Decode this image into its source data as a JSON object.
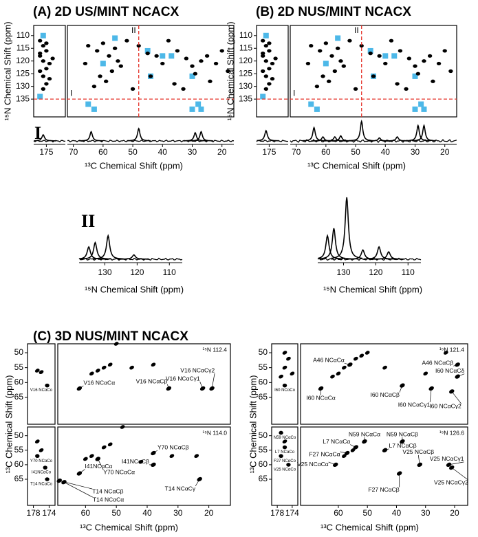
{
  "spectra_2d": {
    "slice_color": "#e5332a",
    "highlight_color": "#4db8e8",
    "axes": {
      "xlim": [
        72,
        16
      ],
      "strip_xlim": [
        179,
        169
      ],
      "ylim": [
        106,
        142
      ],
      "xticks": [
        70,
        60,
        50,
        40,
        30,
        20
      ],
      "strip_xticks": [
        175
      ],
      "yticks": [
        110,
        115,
        120,
        125,
        130,
        135
      ],
      "y_label": "¹⁵N Chemical Shift (ppm)",
      "slice_marks": [
        "I",
        "II"
      ]
    },
    "panels": [
      {
        "title": "(A) 2D US/MINT NCACX",
        "n_slice": 135,
        "c_slice": 48,
        "strip_peaks": [
          [
            177,
            112
          ],
          [
            176,
            114
          ],
          [
            175,
            116
          ],
          [
            177,
            118
          ],
          [
            176,
            120
          ],
          [
            174,
            121
          ],
          [
            175,
            123
          ],
          [
            177,
            124
          ],
          [
            176,
            126
          ],
          [
            174,
            127
          ],
          [
            175,
            129
          ],
          [
            176,
            131
          ],
          [
            177,
            117
          ],
          [
            173,
            119
          ],
          [
            175,
            113
          ]
        ],
        "peaks": [
          [
            65,
            114
          ],
          [
            62,
            116
          ],
          [
            60,
            113
          ],
          [
            58,
            118
          ],
          [
            56,
            115
          ],
          [
            55,
            120
          ],
          [
            54,
            122
          ],
          [
            57,
            124
          ],
          [
            61,
            126
          ],
          [
            59,
            128
          ],
          [
            52,
            112
          ],
          [
            48,
            114
          ],
          [
            45,
            117
          ],
          [
            42,
            118
          ],
          [
            40,
            121
          ],
          [
            38,
            112
          ],
          [
            35,
            116
          ],
          [
            32,
            119
          ],
          [
            30,
            122
          ],
          [
            29,
            125
          ],
          [
            27,
            120
          ],
          [
            25,
            118
          ],
          [
            22,
            121
          ],
          [
            20,
            116
          ],
          [
            18,
            124
          ],
          [
            44,
            126
          ],
          [
            36,
            129
          ],
          [
            33,
            131
          ],
          [
            24,
            128
          ],
          [
            50,
            131
          ],
          [
            63,
            130
          ],
          [
            66,
            121
          ]
        ],
        "strip_boxes": [
          [
            176,
            110
          ],
          [
            177,
            134
          ]
        ],
        "boxes": [
          [
            56,
            111
          ],
          [
            45,
            116
          ],
          [
            60,
            121
          ],
          [
            40,
            118
          ],
          [
            37,
            118
          ],
          [
            44,
            126
          ],
          [
            30,
            126
          ],
          [
            65,
            137
          ],
          [
            63,
            139
          ],
          [
            30,
            139
          ],
          [
            27,
            139
          ],
          [
            28,
            137
          ]
        ]
      },
      {
        "title": "(B) 2D NUS/MINT NCACX",
        "n_slice": 135,
        "c_slice": 48,
        "strip_peaks": [
          [
            177,
            112
          ],
          [
            176,
            114
          ],
          [
            175,
            116
          ],
          [
            177,
            118
          ],
          [
            176,
            120
          ],
          [
            174,
            121
          ],
          [
            175,
            123
          ],
          [
            177,
            124
          ],
          [
            176,
            126
          ],
          [
            174,
            127
          ],
          [
            175,
            129
          ],
          [
            176,
            131
          ],
          [
            177,
            117
          ],
          [
            173,
            119
          ],
          [
            175,
            113
          ]
        ],
        "peaks": [
          [
            65,
            114
          ],
          [
            62,
            116
          ],
          [
            60,
            113
          ],
          [
            58,
            118
          ],
          [
            56,
            115
          ],
          [
            55,
            120
          ],
          [
            54,
            122
          ],
          [
            57,
            124
          ],
          [
            61,
            126
          ],
          [
            59,
            128
          ],
          [
            52,
            112
          ],
          [
            48,
            114
          ],
          [
            45,
            117
          ],
          [
            42,
            118
          ],
          [
            40,
            121
          ],
          [
            38,
            112
          ],
          [
            35,
            116
          ],
          [
            32,
            119
          ],
          [
            30,
            122
          ],
          [
            29,
            125
          ],
          [
            27,
            120
          ],
          [
            25,
            118
          ],
          [
            22,
            121
          ],
          [
            20,
            116
          ],
          [
            18,
            124
          ],
          [
            44,
            126
          ],
          [
            36,
            129
          ],
          [
            33,
            131
          ],
          [
            24,
            128
          ],
          [
            50,
            131
          ],
          [
            63,
            130
          ],
          [
            66,
            121
          ]
        ],
        "strip_boxes": [
          [
            176,
            110
          ],
          [
            177,
            134
          ]
        ],
        "boxes": [
          [
            56,
            111
          ],
          [
            45,
            116
          ],
          [
            60,
            121
          ],
          [
            40,
            118
          ],
          [
            37,
            118
          ],
          [
            44,
            126
          ],
          [
            30,
            126
          ],
          [
            65,
            137
          ],
          [
            63,
            139
          ],
          [
            30,
            139
          ],
          [
            27,
            139
          ],
          [
            28,
            137
          ]
        ]
      }
    ]
  },
  "slice_1": {
    "name": "I",
    "x_label": "¹³C Chemical Shift (ppm)",
    "traces": [
      [
        [
          176,
          0.3
        ],
        [
          64,
          0.45
        ],
        [
          48,
          0.6
        ],
        [
          29,
          0.4
        ],
        [
          27,
          0.45
        ]
      ],
      [
        [
          176,
          0.5
        ],
        [
          64,
          0.65
        ],
        [
          61,
          0.2
        ],
        [
          57,
          0.2
        ],
        [
          55,
          0.25
        ],
        [
          48,
          0.95
        ],
        [
          42,
          0.15
        ],
        [
          36,
          0.2
        ],
        [
          29,
          0.75
        ],
        [
          27,
          0.75
        ]
      ]
    ]
  },
  "slice_2": {
    "name": "II",
    "x_label": "¹⁵N Chemical Shift (ppm)",
    "xlim": [
      138,
      106
    ],
    "xticks": [
      130,
      120,
      110
    ],
    "traces": [
      [
        [
          135,
          0.2
        ],
        [
          133,
          0.27
        ],
        [
          129,
          0.38
        ],
        [
          121,
          0.07
        ]
      ],
      [
        [
          135,
          0.38
        ],
        [
          133,
          0.5
        ],
        [
          129,
          1.0
        ],
        [
          124,
          0.15
        ],
        [
          119,
          0.2
        ],
        [
          116,
          0.12
        ]
      ]
    ]
  },
  "panel_c": {
    "title": "(C) 3D NUS/MINT NCACX",
    "y_label": "¹³C Chemical Shift (ppm)",
    "x_label": "¹³C Chemical Shift (ppm)",
    "ylim": [
      47,
      74
    ],
    "yticks": [
      50,
      55,
      60,
      65
    ],
    "strip_xlim": [
      179.5,
      172.5
    ],
    "strip_xticks": [
      178,
      174
    ],
    "columns": [
      {
        "xlim": [
          69,
          13
        ],
        "xticks": [
          60,
          50,
          40,
          30,
          20
        ],
        "planes": [
          {
            "plane": "¹⁵N 112.4",
            "strip_peaks": [
              [
                177,
                56
              ],
              [
                176,
                56.5
              ]
            ],
            "strip_labeled": [
              {
                "x": 174.5,
                "y": 61,
                "label": "V16 NCαCo"
              }
            ],
            "peaks": [
              [
                58,
                57
              ],
              [
                56,
                56
              ],
              [
                54,
                55
              ],
              [
                52,
                54
              ],
              [
                50,
                47
              ],
              [
                45,
                55
              ],
              [
                38,
                54
              ]
            ],
            "labeled": [
              {
                "x": 62,
                "y": 62,
                "label": "V16 NCαCα"
              },
              {
                "x": 33,
                "y": 62,
                "label": "V16 NCαCβ"
              },
              {
                "x": 22,
                "y": 62,
                "label": "V16 NCαCγ1"
              },
              {
                "x": 19,
                "y": 62,
                "label": "V16 NCαCγ2"
              }
            ]
          },
          {
            "plane": "¹⁵N 114.0",
            "strip_peaks": [
              [
                177,
                52
              ],
              [
                176,
                55
              ]
            ],
            "strip_labeled": [
              {
                "x": 177,
                "y": 57,
                "label": "Y70 NCαCo"
              },
              {
                "x": 175,
                "y": 61,
                "label": "I41NCαCo"
              },
              {
                "x": 174.5,
                "y": 65,
                "label": "T14 NCαCo"
              }
            ],
            "peaks": [
              [
                60,
                58
              ],
              [
                58,
                57
              ],
              [
                54,
                54
              ],
              [
                52,
                53
              ],
              [
                48,
                47
              ],
              [
                42,
                59
              ],
              [
                32,
                57
              ],
              [
                24,
                57
              ]
            ],
            "labeled": [
              {
                "x": 56,
                "y": 58,
                "label": "Y70 NCαCα"
              },
              {
                "x": 38,
                "y": 56,
                "label": "Y70 NCαCβ"
              },
              {
                "x": 62,
                "y": 63,
                "label": "I41NCαCα"
              },
              {
                "x": 38,
                "y": 60,
                "label": "I41NCαCβ"
              },
              {
                "x": 67,
                "y": 66,
                "label": "T14 NCαCα"
              },
              {
                "x": 68.5,
                "y": 65.5,
                "label": "T14 NCαCβ"
              },
              {
                "x": 23,
                "y": 65,
                "label": "T14 NCαCγ"
              }
            ]
          }
        ]
      },
      {
        "xlim": [
          73,
          15.5
        ],
        "xticks": [
          60,
          50,
          40,
          30,
          20
        ],
        "planes": [
          {
            "plane": "¹⁵N 121.4",
            "strip_peaks": [
              [
                176,
                50
              ],
              [
                175,
                52
              ],
              [
                176,
                55
              ],
              [
                174,
                57
              ],
              [
                177,
                58
              ]
            ],
            "strip_labeled": [
              {
                "x": 176,
                "y": 61,
                "label": "I60 NCαCo"
              }
            ],
            "peaks": [
              [
                54,
                52
              ],
              [
                58,
                55
              ],
              [
                60,
                57
              ],
              [
                62,
                58
              ],
              [
                52,
                51
              ],
              [
                50,
                50
              ],
              [
                30,
                57
              ],
              [
                44,
                55
              ],
              [
                23,
                50
              ]
            ],
            "labeled": [
              {
                "x": 56,
                "y": 54,
                "label": "A46 NCαCα"
              },
              {
                "x": 66,
                "y": 62,
                "label": "I60 NCαCα"
              },
              {
                "x": 19,
                "y": 54,
                "label": "A46 NCαCβ"
              },
              {
                "x": 38,
                "y": 61,
                "label": "I60 NCαCβ"
              },
              {
                "x": 28,
                "y": 62,
                "label": "I60 NCαCγ1"
              },
              {
                "x": 19,
                "y": 58,
                "label": "I60 NCαCδ"
              },
              {
                "x": 21,
                "y": 63,
                "label": "I60 NCαCγ2"
              }
            ]
          },
          {
            "plane": "¹⁵N 126.6",
            "strip_peaks": [
              [
                176,
                52
              ]
            ],
            "strip_labeled": [
              {
                "x": 177,
                "y": 49,
                "label": "N59 NCαCo"
              },
              {
                "x": 176,
                "y": 54,
                "label": "L7 NCαCo"
              },
              {
                "x": 177,
                "y": 57,
                "label": "F27 NCαCo"
              },
              {
                "x": 175,
                "y": 60,
                "label": "V25 NCαCo"
              }
            ],
            "peaks": [
              [
                55,
                55
              ],
              [
                58,
                57
              ]
            ],
            "labeled": [
              {
                "x": 51,
                "y": 52,
                "label": "N59 NCαCα"
              },
              {
                "x": 38,
                "y": 52,
                "label": "N59 NCαCβ"
              },
              {
                "x": 54,
                "y": 54,
                "label": "L7 NCαCα"
              },
              {
                "x": 44,
                "y": 55,
                "label": "L7 NCαCβ"
              },
              {
                "x": 57,
                "y": 56,
                "label": "F27 NCαCα"
              },
              {
                "x": 61,
                "y": 60,
                "label": "V25 NCαCα"
              },
              {
                "x": 39,
                "y": 63,
                "label": "F27 NCαCβ"
              },
              {
                "x": 32,
                "y": 60,
                "label": "V25 NCαCβ"
              },
              {
                "x": 22,
                "y": 60,
                "label": "V25 NCαCγ1"
              },
              {
                "x": 21,
                "y": 61,
                "label": "V25 NCαCγ2"
              }
            ]
          }
        ]
      }
    ]
  }
}
